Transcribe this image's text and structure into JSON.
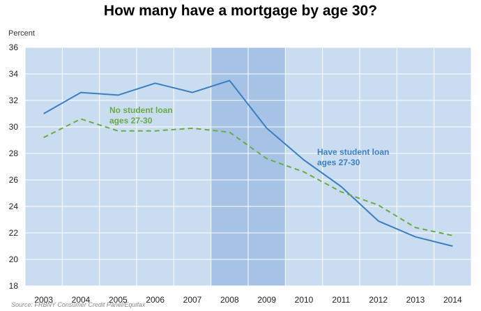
{
  "colors": {
    "plot_bg": "#c9dcf0",
    "grid": "#ffffff",
    "recession": "#a6c3e6",
    "have_loan": "#3a7fc4",
    "no_loan": "#6aab44"
  },
  "chart_data": {
    "type": "line",
    "title": "How many have a mortgage by age 30?",
    "ylabel": "Percent",
    "xlabel": "",
    "source": "Source: FRBNY Consumer Credit Panel/Equifax",
    "x": [
      2003,
      2004,
      2005,
      2006,
      2007,
      2008,
      2009,
      2010,
      2011,
      2012,
      2013,
      2014
    ],
    "ylim": [
      18,
      36
    ],
    "yticks": [
      18,
      20,
      22,
      24,
      26,
      28,
      30,
      32,
      34,
      36
    ],
    "grid": true,
    "shaded_region": {
      "x_start": 2007.5,
      "x_end": 2009.5
    },
    "series": [
      {
        "name": "Have student loan ages 27-30",
        "label_lines": [
          "Have student loan",
          "ages 27-30"
        ],
        "style": "solid",
        "values": [
          31.0,
          32.6,
          32.4,
          33.3,
          32.6,
          33.5,
          29.9,
          27.5,
          25.5,
          22.9,
          21.7,
          21.0
        ]
      },
      {
        "name": "No student loan ages 27-30",
        "label_lines": [
          "No student loan",
          "ages 27-30"
        ],
        "style": "dashed",
        "values": [
          29.2,
          30.6,
          29.7,
          29.7,
          29.9,
          29.6,
          27.6,
          26.6,
          25.1,
          24.1,
          22.4,
          21.8
        ]
      }
    ]
  }
}
